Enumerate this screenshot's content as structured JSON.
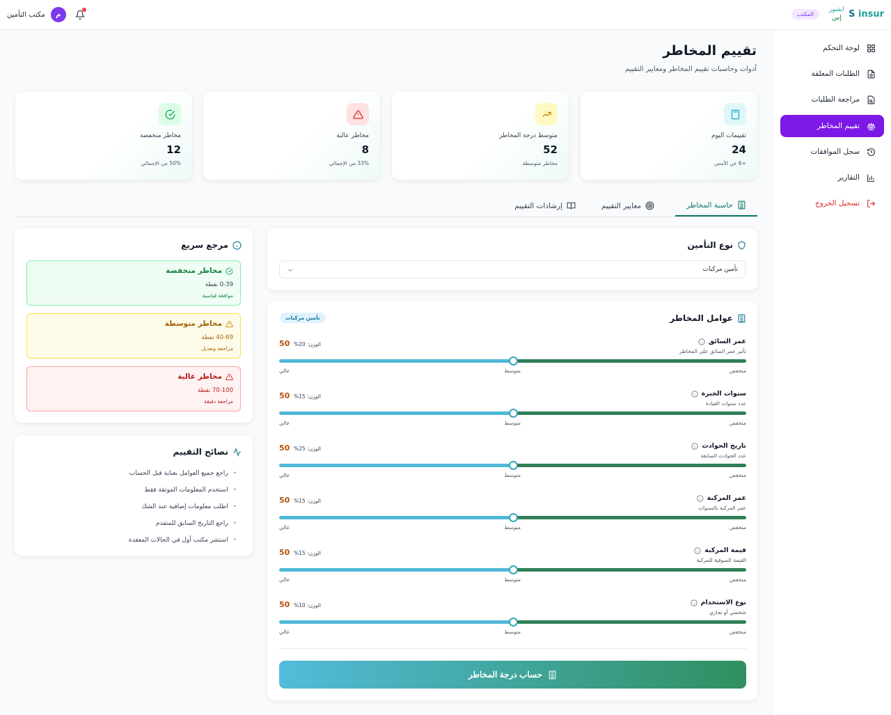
{
  "topbar": {
    "user_name": "مكتب التأمين",
    "avatar_letter": "م",
    "logo_en_a": "S ",
    "logo_en_b": "insur",
    "logo_ar_1": "انشور",
    "logo_ar_2": "إس",
    "office_badge": "المكتب"
  },
  "sidebar": {
    "items": [
      {
        "label": "لوحة التحكم",
        "icon": "dashboard-icon"
      },
      {
        "label": "الطلبات المعلقة",
        "icon": "file-pending-icon"
      },
      {
        "label": "مراجعة الطلبات",
        "icon": "file-search-icon"
      },
      {
        "label": "تقييم المخاطر",
        "icon": "scale-icon"
      },
      {
        "label": "سجل الموافقات",
        "icon": "history-icon"
      },
      {
        "label": "التقارير",
        "icon": "bar-chart-icon"
      },
      {
        "label": "تسجيل الخروج",
        "icon": "logout-icon"
      }
    ]
  },
  "header": {
    "title": "تقييم المخاطر",
    "subtitle": "أدوات وحاسبات تقييم المخاطر ومعايير التقييم"
  },
  "stats": [
    {
      "label": "تقييمات اليوم",
      "value": "24",
      "note": "+6 عن الأمس",
      "color": "#0ea5c6",
      "bg": "#e0f7fa"
    },
    {
      "label": "متوسط درجة المخاطر",
      "value": "52",
      "note": "مخاطر متوسطة",
      "color": "#ca8a04",
      "bg": "#fef9c3"
    },
    {
      "label": "مخاطر عالية",
      "value": "8",
      "note": "33% من الإجمالي",
      "color": "#dc2626",
      "bg": "#fee2e2"
    },
    {
      "label": "مخاطر منخفضة",
      "value": "12",
      "note": "50% من الإجمالي",
      "color": "#16a34a",
      "bg": "#dcfce7"
    }
  ],
  "tabs": [
    {
      "label": "حاسبة المخاطر",
      "active": true
    },
    {
      "label": "معايير التقييم",
      "active": false
    },
    {
      "label": "إرشادات التقييم",
      "active": false
    }
  ],
  "insurance_type": {
    "title": "نوع التأمين",
    "selected": "تأمين مركبات"
  },
  "factors": {
    "title": "عوامل المخاطر",
    "tag": "تأمين مركبات",
    "tick_low": "منخفض",
    "tick_mid": "متوسط",
    "tick_high": "عالي",
    "items": [
      {
        "name": "عمر السائق",
        "desc": "تأثير عمر السائق على المخاطر",
        "weight": "الوزن: 20%",
        "value": 50
      },
      {
        "name": "سنوات الخبرة",
        "desc": "عدد سنوات القيادة",
        "weight": "الوزن: 15%",
        "value": 50
      },
      {
        "name": "تاريخ الحوادث",
        "desc": "عدد الحوادث السابقة",
        "weight": "الوزن: 25%",
        "value": 50
      },
      {
        "name": "عمر المركبة",
        "desc": "عمر المركبة بالسنوات",
        "weight": "الوزن: 15%",
        "value": 50
      },
      {
        "name": "قيمة المركبة",
        "desc": "القيمة السوقية للمركبة",
        "weight": "الوزن: 15%",
        "value": 50
      },
      {
        "name": "نوع الاستخدام",
        "desc": "شخصي أو تجاري",
        "weight": "الوزن: 10%",
        "value": 50
      }
    ],
    "button": "حساب درجة المخاطر"
  },
  "quick_ref": {
    "title": "مرجع سريع",
    "items": [
      {
        "title": "مخاطر منخفضة",
        "points": "0-39 نقطة",
        "status": "موافقة قياسية",
        "color": "#15803d",
        "bg": "#f0fdf4",
        "border": "#86efac"
      },
      {
        "title": "مخاطر متوسطة",
        "points": "40-69 نقطة",
        "status": "مراجعة وتعديل",
        "color": "#a16207",
        "bg": "#fefce8",
        "border": "#fde047"
      },
      {
        "title": "مخاطر عالية",
        "points": "70-100 نقطة",
        "status": "مراجعة دقيقة",
        "color": "#b91c1c",
        "bg": "#fef2f2",
        "border": "#fca5a5"
      }
    ]
  },
  "tips": {
    "title": "نصائح التقييم",
    "items": [
      "راجع جميع العوامل بعناية قبل الحساب",
      "استخدم المعلومات الموثقة فقط",
      "اطلب معلومات إضافية عند الشك",
      "راجع التاريخ السابق للمتقدم",
      "استشر مكتب أول في الحالات المعقدة"
    ]
  }
}
